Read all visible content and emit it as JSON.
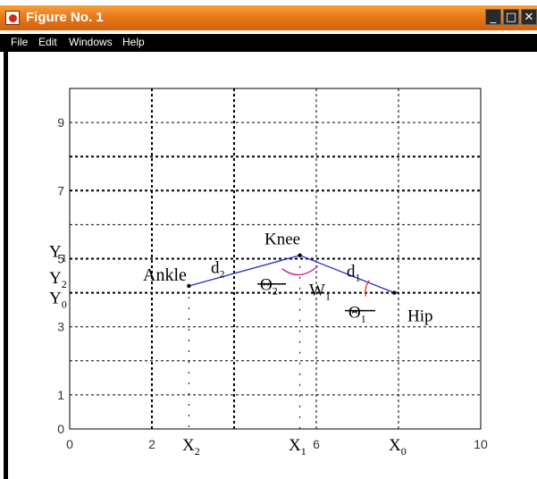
{
  "window": {
    "title": "Figure No. 1",
    "controls": {
      "minimize": "_",
      "maximize": "□",
      "close": "✕"
    }
  },
  "menu": {
    "items": [
      "File",
      "Edit",
      "Windows",
      "Help"
    ]
  },
  "chart_data": {
    "type": "line",
    "xlim": [
      0,
      10
    ],
    "ylim": [
      0,
      10
    ],
    "x_ticks": [
      "0",
      "2",
      "6",
      "10"
    ],
    "y_ticks": [
      "0",
      "1",
      "3",
      "5",
      "7",
      "9"
    ],
    "grid": true,
    "series": [
      {
        "x": [
          2.9,
          5.6,
          7.9
        ],
        "y": [
          4.2,
          5.1,
          4.0
        ],
        "color": "#2a2acf"
      }
    ],
    "annotations": {
      "ankle": "Ankle",
      "knee": "Knee",
      "hip": "Hip",
      "d2": "d",
      "d2_sub": "2",
      "d1": "d",
      "d1_sub": "1",
      "theta2": "Θ",
      "theta2_sub": "2",
      "theta1": "Θ",
      "theta1_sub": "1",
      "w1": "W",
      "w1_sub": "1",
      "y1": "Y",
      "y1_sub": "1",
      "y2": "Y",
      "y2_sub": "2",
      "y0": "Y",
      "y0_sub": "0",
      "x2": "X",
      "x2_sub": "2",
      "x1": "X",
      "x1_sub": "1",
      "x0": "X",
      "x0_sub": "0"
    }
  }
}
